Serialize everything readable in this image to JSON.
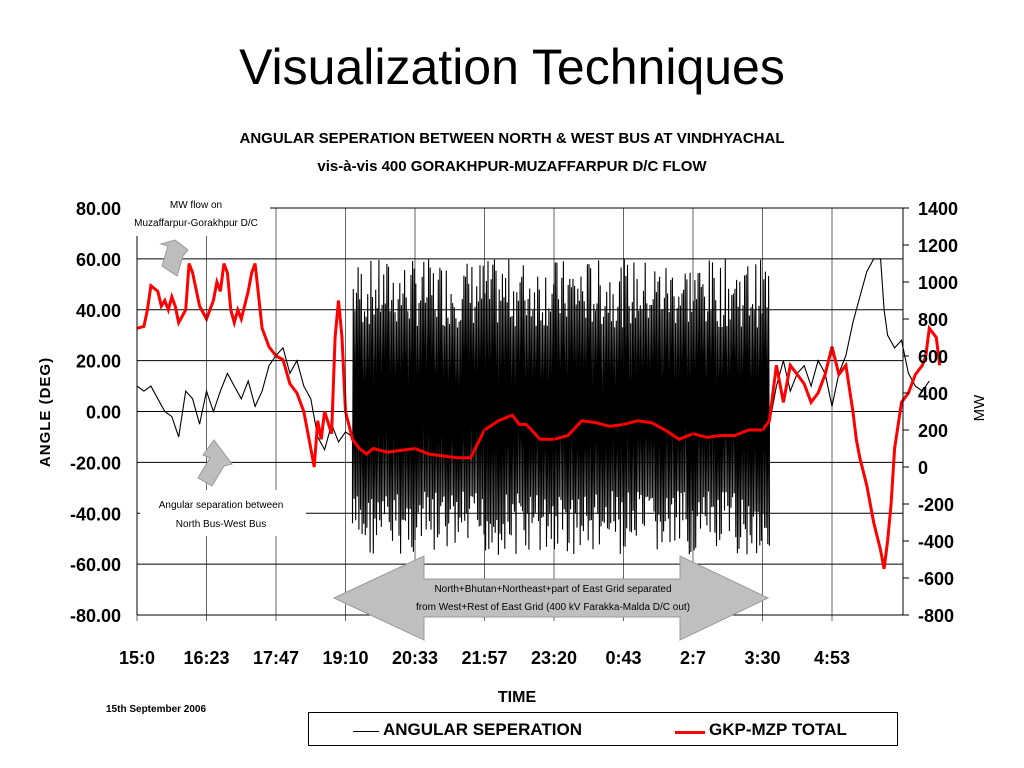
{
  "slide": {
    "title": "Visualization Techniques"
  },
  "chart_data": {
    "type": "line",
    "title": "ANGULAR SEPERATION BETWEEN NORTH & WEST BUS AT VINDHYACHAL",
    "subtitle": "vis-à-vis 400 GORAKHPUR-MUZAFFARPUR D/C FLOW",
    "xlabel": "TIME",
    "ylabel": "ANGLE (DEG)",
    "y2label": "MW",
    "x_ticks": [
      "15:0",
      "16:23",
      "17:47",
      "19:10",
      "20:33",
      "21:57",
      "23:20",
      "0:43",
      "2:7",
      "3:30",
      "4:53"
    ],
    "y_ticks": [
      "80.00",
      "60.00",
      "40.00",
      "20.00",
      "0.00",
      "-20.00",
      "-40.00",
      "-60.00",
      "-80.00"
    ],
    "y2_ticks": [
      "1400",
      "1200",
      "1000",
      "800",
      "600",
      "400",
      "200",
      "0",
      "-200",
      "-400",
      "-600",
      "-800"
    ],
    "ylim": [
      -80,
      80
    ],
    "y2lim": [
      -800,
      1400
    ],
    "grid": "horizontal",
    "legend_position": "bottom",
    "series": [
      {
        "name": "ANGULAR SEPERATION",
        "axis": "left",
        "color": "#000000",
        "points": [
          [
            0,
            10
          ],
          [
            0.1,
            8
          ],
          [
            0.2,
            10
          ],
          [
            0.3,
            5
          ],
          [
            0.4,
            0
          ],
          [
            0.5,
            -2
          ],
          [
            0.6,
            -10
          ],
          [
            0.7,
            8
          ],
          [
            0.8,
            5
          ],
          [
            0.9,
            -5
          ],
          [
            1.0,
            8
          ],
          [
            1.1,
            0
          ],
          [
            1.2,
            8
          ],
          [
            1.3,
            15
          ],
          [
            1.4,
            10
          ],
          [
            1.5,
            5
          ],
          [
            1.6,
            12
          ],
          [
            1.7,
            2
          ],
          [
            1.8,
            8
          ],
          [
            1.9,
            18
          ],
          [
            2.0,
            22
          ],
          [
            2.1,
            25
          ],
          [
            2.2,
            15
          ],
          [
            2.3,
            20
          ],
          [
            2.4,
            10
          ],
          [
            2.5,
            5
          ],
          [
            2.6,
            -10
          ],
          [
            2.7,
            -15
          ],
          [
            2.8,
            -5
          ],
          [
            2.9,
            -12
          ],
          [
            3.0,
            -8
          ],
          [
            3.1,
            -10
          ],
          [
            9.1,
            -5
          ],
          [
            9.2,
            10
          ],
          [
            9.3,
            20
          ],
          [
            9.4,
            8
          ],
          [
            9.5,
            15
          ],
          [
            9.6,
            18
          ],
          [
            9.7,
            10
          ],
          [
            9.8,
            20
          ],
          [
            9.9,
            15
          ],
          [
            10.0,
            2
          ],
          [
            10.1,
            15
          ],
          [
            10.2,
            22
          ],
          [
            10.3,
            35
          ],
          [
            10.4,
            45
          ],
          [
            10.5,
            55
          ],
          [
            10.6,
            60
          ],
          [
            10.7,
            60
          ],
          [
            10.75,
            40
          ],
          [
            10.8,
            30
          ],
          [
            10.9,
            25
          ],
          [
            11.0,
            28
          ],
          [
            11.1,
            15
          ],
          [
            11.2,
            10
          ],
          [
            11.3,
            8
          ],
          [
            11.4,
            12
          ]
        ],
        "oscillation": {
          "x_range": [
            3.1,
            9.1
          ],
          "ylim": [
            -57,
            60
          ]
        }
      },
      {
        "name": "GKP-MZP TOTAL",
        "axis": "right",
        "color": "#ff0000",
        "points": [
          [
            0,
            750
          ],
          [
            0.1,
            760
          ],
          [
            0.15,
            850
          ],
          [
            0.2,
            980
          ],
          [
            0.3,
            950
          ],
          [
            0.35,
            870
          ],
          [
            0.4,
            900
          ],
          [
            0.45,
            850
          ],
          [
            0.5,
            920
          ],
          [
            0.55,
            870
          ],
          [
            0.6,
            780
          ],
          [
            0.7,
            850
          ],
          [
            0.75,
            1100
          ],
          [
            0.8,
            1050
          ],
          [
            0.9,
            870
          ],
          [
            1.0,
            800
          ],
          [
            1.1,
            900
          ],
          [
            1.15,
            1000
          ],
          [
            1.2,
            950
          ],
          [
            1.25,
            1100
          ],
          [
            1.3,
            1050
          ],
          [
            1.35,
            850
          ],
          [
            1.4,
            780
          ],
          [
            1.45,
            850
          ],
          [
            1.5,
            800
          ],
          [
            1.6,
            950
          ],
          [
            1.65,
            1050
          ],
          [
            1.7,
            1100
          ],
          [
            1.8,
            750
          ],
          [
            1.9,
            650
          ],
          [
            2.0,
            600
          ],
          [
            2.1,
            580
          ],
          [
            2.2,
            450
          ],
          [
            2.3,
            400
          ],
          [
            2.4,
            300
          ],
          [
            2.5,
            100
          ],
          [
            2.55,
            0
          ],
          [
            2.6,
            250
          ],
          [
            2.65,
            150
          ],
          [
            2.7,
            300
          ],
          [
            2.8,
            180
          ],
          [
            2.85,
            700
          ],
          [
            2.9,
            900
          ],
          [
            2.95,
            700
          ],
          [
            3.0,
            300
          ],
          [
            3.1,
            150
          ],
          [
            3.2,
            100
          ],
          [
            3.3,
            70
          ],
          [
            3.4,
            100
          ],
          [
            3.6,
            80
          ],
          [
            3.8,
            90
          ],
          [
            4.0,
            100
          ],
          [
            4.2,
            70
          ],
          [
            4.4,
            60
          ],
          [
            4.6,
            50
          ],
          [
            4.8,
            50
          ],
          [
            5.0,
            200
          ],
          [
            5.2,
            250
          ],
          [
            5.4,
            280
          ],
          [
            5.5,
            230
          ],
          [
            5.6,
            230
          ],
          [
            5.8,
            150
          ],
          [
            6.0,
            150
          ],
          [
            6.2,
            170
          ],
          [
            6.4,
            250
          ],
          [
            6.6,
            240
          ],
          [
            6.8,
            220
          ],
          [
            7.0,
            230
          ],
          [
            7.2,
            250
          ],
          [
            7.4,
            240
          ],
          [
            7.6,
            200
          ],
          [
            7.8,
            150
          ],
          [
            8.0,
            180
          ],
          [
            8.2,
            160
          ],
          [
            8.4,
            170
          ],
          [
            8.6,
            170
          ],
          [
            8.8,
            200
          ],
          [
            9.0,
            200
          ],
          [
            9.1,
            250
          ],
          [
            9.2,
            550
          ],
          [
            9.3,
            350
          ],
          [
            9.4,
            550
          ],
          [
            9.5,
            500
          ],
          [
            9.6,
            450
          ],
          [
            9.7,
            350
          ],
          [
            9.8,
            400
          ],
          [
            9.9,
            500
          ],
          [
            10.0,
            650
          ],
          [
            10.1,
            500
          ],
          [
            10.2,
            550
          ],
          [
            10.3,
            300
          ],
          [
            10.35,
            150
          ],
          [
            10.4,
            50
          ],
          [
            10.5,
            -100
          ],
          [
            10.6,
            -300
          ],
          [
            10.7,
            -450
          ],
          [
            10.75,
            -550
          ],
          [
            10.8,
            -400
          ],
          [
            10.85,
            -200
          ],
          [
            10.9,
            100
          ],
          [
            11.0,
            350
          ],
          [
            11.1,
            400
          ],
          [
            11.2,
            500
          ],
          [
            11.3,
            550
          ],
          [
            11.35,
            600
          ],
          [
            11.4,
            750
          ],
          [
            11.5,
            700
          ],
          [
            11.55,
            550
          ]
        ]
      }
    ],
    "annotations": [
      {
        "id": "mw-flow",
        "text": [
          "MW flow on",
          "Muzaffarpur-Gorakhpur D/C"
        ]
      },
      {
        "id": "angular",
        "text": [
          "Angular separation between",
          "North Bus-West Bus"
        ]
      },
      {
        "id": "separation",
        "text": [
          "North+Bhutan+Northeast+part of East Grid separated",
          "from West+Rest of East Grid (400 kV Farakka-Malda D/C out)"
        ]
      }
    ],
    "date_note": "15th September 2006"
  }
}
